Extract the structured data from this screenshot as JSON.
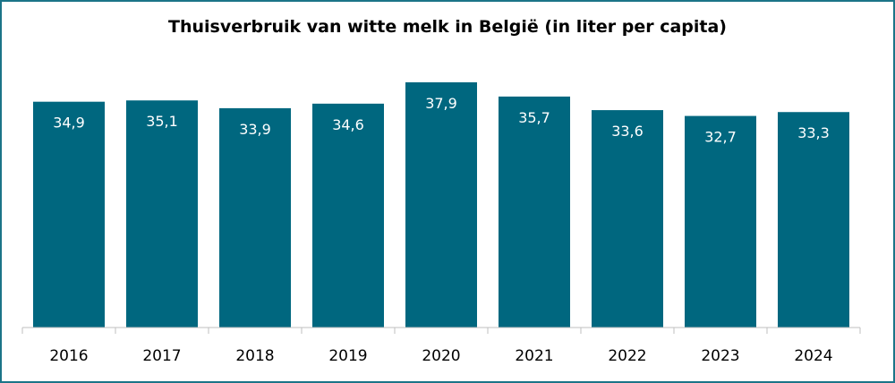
{
  "chart_data": {
    "type": "bar",
    "title": "Thuisverbruik van witte melk in België (in liter per capita)",
    "categories": [
      "2016",
      "2017",
      "2018",
      "2019",
      "2020",
      "2021",
      "2022",
      "2023",
      "2024"
    ],
    "values": [
      34.9,
      35.1,
      33.9,
      34.6,
      37.9,
      35.7,
      33.6,
      32.7,
      33.3
    ],
    "value_labels": [
      "34,9",
      "35,1",
      "33,9",
      "34,6",
      "37,9",
      "35,7",
      "33,6",
      "32,7",
      "33,3"
    ],
    "xlabel": "",
    "ylabel": "",
    "ylim": [
      0,
      40
    ],
    "grid": false,
    "legend": "none",
    "bar_color": "#00677f",
    "label_color": "#ffffff",
    "border_color": "#1b7488"
  }
}
